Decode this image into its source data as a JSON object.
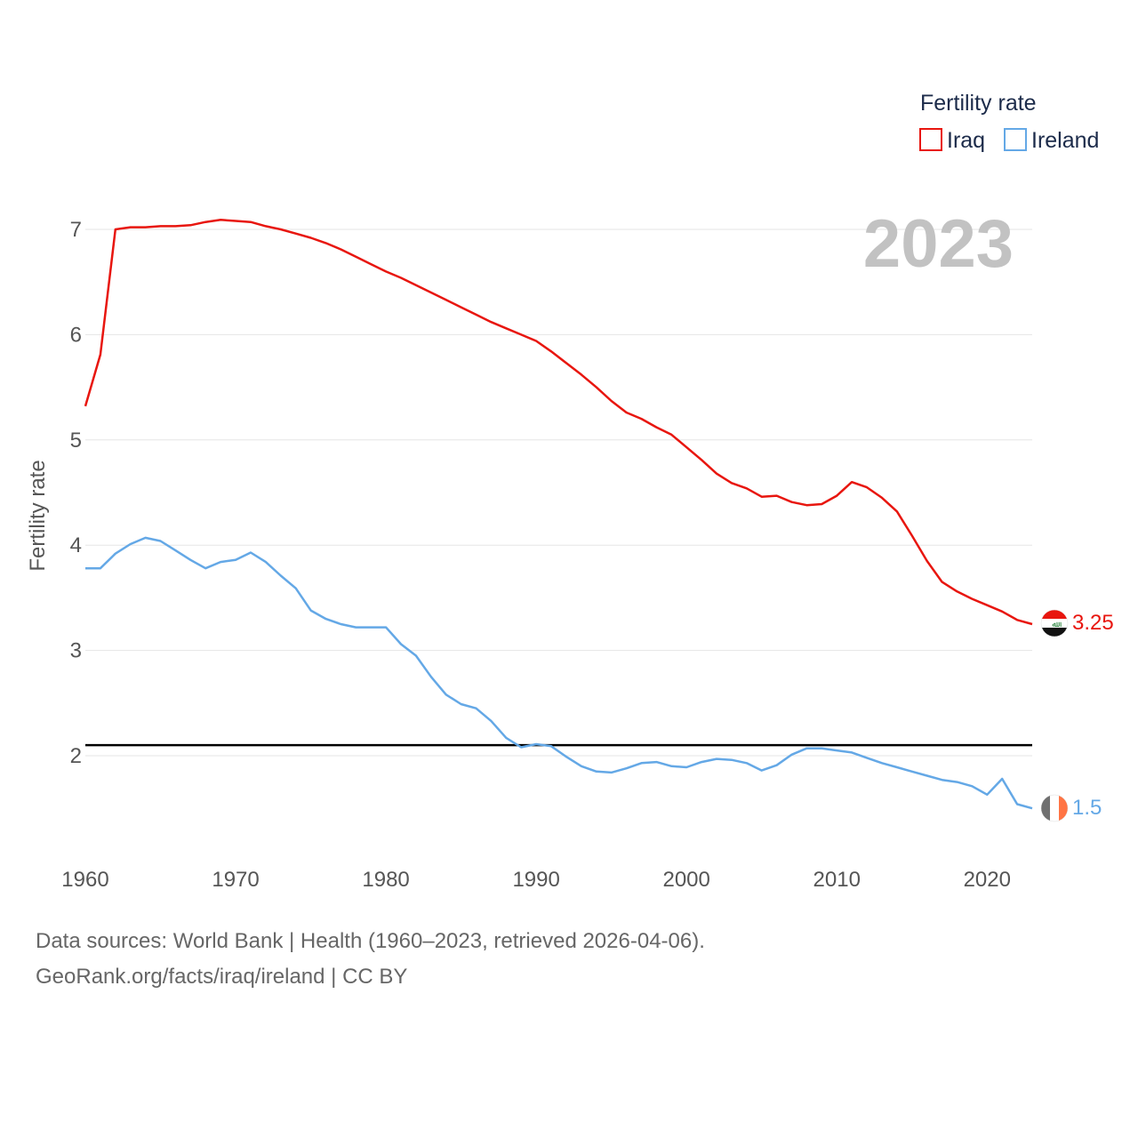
{
  "chart_data": {
    "type": "line",
    "title": "",
    "ylabel": "Fertility rate",
    "xlabel": "",
    "xlim": [
      1960,
      2023
    ],
    "ylim": [
      1.2,
      7.3
    ],
    "x_ticks": [
      1960,
      1970,
      1980,
      1990,
      2000,
      2010,
      2020
    ],
    "y_ticks": [
      2,
      3,
      4,
      5,
      6,
      7
    ],
    "grid": true,
    "reference_line": 2.1,
    "current_year_label": "2023",
    "legend": {
      "title": "Fertility rate",
      "position": "top-right"
    },
    "x": [
      1960,
      1961,
      1962,
      1963,
      1964,
      1965,
      1966,
      1967,
      1968,
      1969,
      1970,
      1971,
      1972,
      1973,
      1974,
      1975,
      1976,
      1977,
      1978,
      1979,
      1980,
      1981,
      1982,
      1983,
      1984,
      1985,
      1986,
      1987,
      1988,
      1989,
      1990,
      1991,
      1992,
      1993,
      1994,
      1995,
      1996,
      1997,
      1998,
      1999,
      2000,
      2001,
      2002,
      2003,
      2004,
      2005,
      2006,
      2007,
      2008,
      2009,
      2010,
      2011,
      2012,
      2013,
      2014,
      2015,
      2016,
      2017,
      2018,
      2019,
      2020,
      2021,
      2022,
      2023
    ],
    "series": [
      {
        "name": "Iraq",
        "color": "#e8160f",
        "end_label": "3.25",
        "flag": "iraq-flag",
        "values": [
          5.32,
          5.81,
          7.0,
          7.02,
          7.02,
          7.03,
          7.03,
          7.04,
          7.07,
          7.09,
          7.08,
          7.07,
          7.03,
          7.0,
          6.96,
          6.92,
          6.87,
          6.81,
          6.74,
          6.67,
          6.6,
          6.54,
          6.47,
          6.4,
          6.33,
          6.26,
          6.19,
          6.12,
          6.06,
          6.0,
          5.94,
          5.84,
          5.73,
          5.62,
          5.5,
          5.37,
          5.26,
          5.2,
          5.12,
          5.05,
          4.93,
          4.81,
          4.68,
          4.59,
          4.54,
          4.46,
          4.47,
          4.41,
          4.38,
          4.39,
          4.47,
          4.6,
          4.55,
          4.45,
          4.32,
          4.09,
          3.85,
          3.65,
          3.56,
          3.49,
          3.43,
          3.37,
          3.29,
          3.25
        ]
      },
      {
        "name": "Ireland",
        "color": "#64a8e6",
        "end_label": "1.5",
        "flag": "ireland-flag",
        "values": [
          3.78,
          3.78,
          3.92,
          4.01,
          4.07,
          4.04,
          3.95,
          3.86,
          3.78,
          3.84,
          3.86,
          3.93,
          3.84,
          3.71,
          3.59,
          3.38,
          3.3,
          3.25,
          3.22,
          3.22,
          3.22,
          3.06,
          2.95,
          2.75,
          2.58,
          2.49,
          2.45,
          2.33,
          2.17,
          2.08,
          2.11,
          2.09,
          1.99,
          1.9,
          1.85,
          1.84,
          1.88,
          1.93,
          1.94,
          1.9,
          1.89,
          1.94,
          1.97,
          1.96,
          1.93,
          1.86,
          1.91,
          2.01,
          2.07,
          2.07,
          2.05,
          2.03,
          1.98,
          1.93,
          1.89,
          1.85,
          1.81,
          1.77,
          1.75,
          1.71,
          1.63,
          1.78,
          1.54,
          1.5
        ]
      }
    ]
  },
  "footer": {
    "sources": "Data sources: World Bank | Health (1960–2023, retrieved 2026-04-06).",
    "credit": "GeoRank.org/facts/iraq/ireland | CC BY"
  }
}
